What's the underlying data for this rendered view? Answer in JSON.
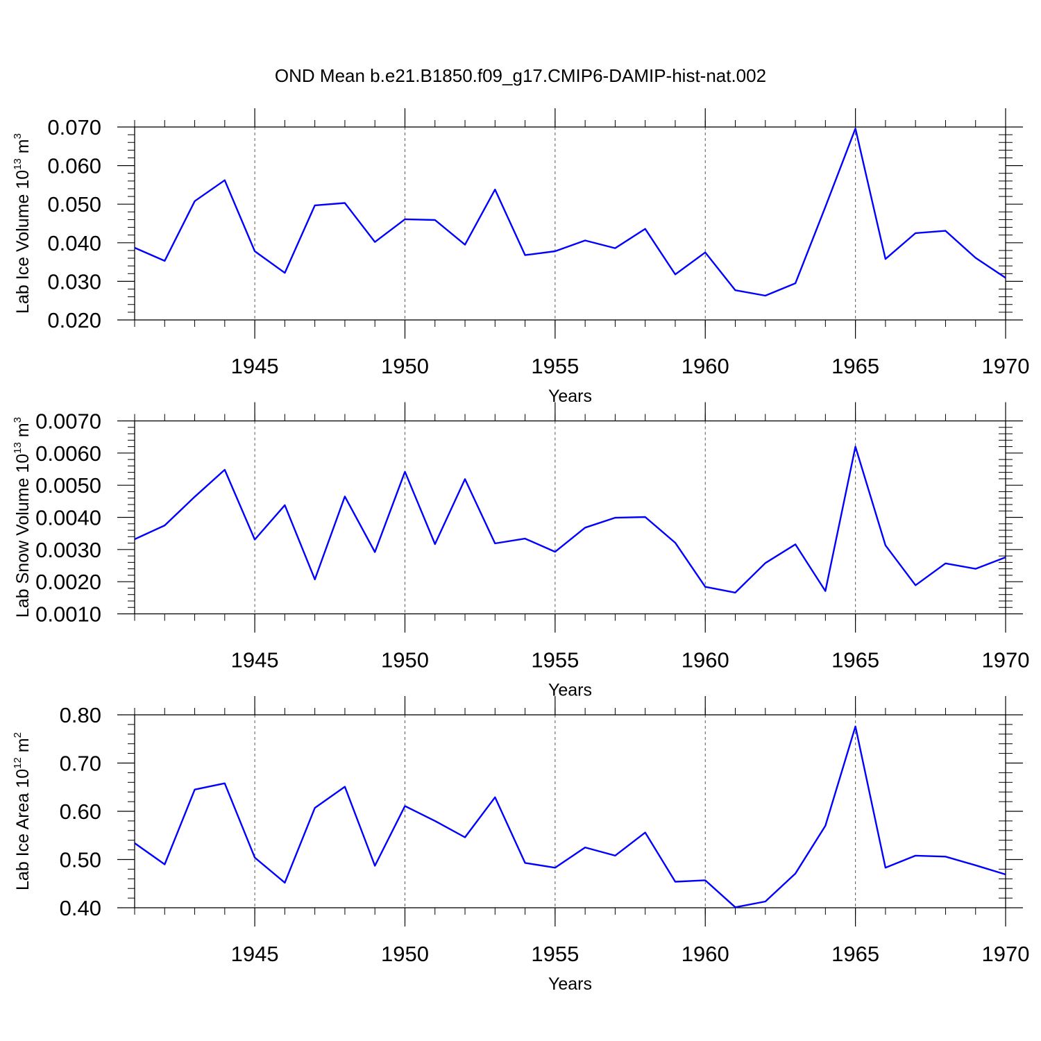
{
  "title": "OND Mean b.e21.B1850.f09_g17.CMIP6-DAMIP-hist-nat.002",
  "line_color": "#0000ff",
  "chart_data": [
    {
      "type": "line",
      "name": "lab-ice-volume",
      "ylabel_text": "Lab Ice Volume 10",
      "ylabel_exp": "13",
      "ylabel_unit": " m",
      "ylabel_unit_exp": "3",
      "xlabel": "Years",
      "xlim": [
        1941,
        1970
      ],
      "ylim": [
        0.02,
        0.07
      ],
      "yticks": [
        0.02,
        0.03,
        0.04,
        0.05,
        0.06,
        0.07
      ],
      "ytick_labels": [
        "0.020",
        "0.030",
        "0.040",
        "0.050",
        "0.060",
        "0.070"
      ],
      "xticks": [
        1945,
        1950,
        1955,
        1960,
        1965,
        1970
      ],
      "xtick_labels": [
        "1945",
        "1950",
        "1955",
        "1960",
        "1965",
        "1970"
      ],
      "x": [
        1941,
        1942,
        1943,
        1944,
        1945,
        1946,
        1947,
        1948,
        1949,
        1950,
        1951,
        1952,
        1953,
        1954,
        1955,
        1956,
        1957,
        1958,
        1959,
        1960,
        1961,
        1962,
        1963,
        1964,
        1965,
        1966,
        1967,
        1968,
        1969,
        1970
      ],
      "values": [
        0.0387,
        0.0353,
        0.0508,
        0.0562,
        0.0378,
        0.0322,
        0.0497,
        0.0503,
        0.0402,
        0.0461,
        0.0459,
        0.0395,
        0.0538,
        0.0368,
        0.0378,
        0.0406,
        0.0386,
        0.0436,
        0.0318,
        0.0375,
        0.0277,
        0.0263,
        0.0295,
        0.0493,
        0.0696,
        0.0358,
        0.0425,
        0.0431,
        0.0361,
        0.0309
      ]
    },
    {
      "type": "line",
      "name": "lab-snow-volume",
      "ylabel_text": "Lab Snow Volume 10",
      "ylabel_exp": "13",
      "ylabel_unit": " m",
      "ylabel_unit_exp": "3",
      "xlabel": "Years",
      "xlim": [
        1941,
        1970
      ],
      "ylim": [
        0.001,
        0.007
      ],
      "yticks": [
        0.001,
        0.002,
        0.003,
        0.004,
        0.005,
        0.006,
        0.007
      ],
      "ytick_labels": [
        "0.0010",
        "0.0020",
        "0.0030",
        "0.0040",
        "0.0050",
        "0.0060",
        "0.0070"
      ],
      "xticks": [
        1945,
        1950,
        1955,
        1960,
        1965,
        1970
      ],
      "xtick_labels": [
        "1945",
        "1950",
        "1955",
        "1960",
        "1965",
        "1970"
      ],
      "x": [
        1941,
        1942,
        1943,
        1944,
        1945,
        1946,
        1947,
        1948,
        1949,
        1950,
        1951,
        1952,
        1953,
        1954,
        1955,
        1956,
        1957,
        1958,
        1959,
        1960,
        1961,
        1962,
        1963,
        1964,
        1965,
        1966,
        1967,
        1968,
        1969,
        1970
      ],
      "values": [
        0.00332,
        0.00375,
        0.00464,
        0.00548,
        0.00331,
        0.00438,
        0.00207,
        0.00465,
        0.00292,
        0.00542,
        0.00317,
        0.00519,
        0.00319,
        0.00334,
        0.00293,
        0.00368,
        0.00399,
        0.00401,
        0.00321,
        0.00184,
        0.00166,
        0.00258,
        0.00316,
        0.00171,
        0.0062,
        0.00313,
        0.00189,
        0.00257,
        0.0024,
        0.00276
      ]
    },
    {
      "type": "line",
      "name": "lab-ice-area",
      "ylabel_text": "Lab Ice Area 10",
      "ylabel_exp": "12",
      "ylabel_unit": " m",
      "ylabel_unit_exp": "2",
      "xlabel": "Years",
      "xlim": [
        1941,
        1970
      ],
      "ylim": [
        0.4,
        0.8
      ],
      "yticks": [
        0.4,
        0.5,
        0.6,
        0.7,
        0.8
      ],
      "ytick_labels": [
        "0.40",
        "0.50",
        "0.60",
        "0.70",
        "0.80"
      ],
      "xticks": [
        1945,
        1950,
        1955,
        1960,
        1965,
        1970
      ],
      "xtick_labels": [
        "1945",
        "1950",
        "1955",
        "1960",
        "1965",
        "1970"
      ],
      "x": [
        1941,
        1942,
        1943,
        1944,
        1945,
        1946,
        1947,
        1948,
        1949,
        1950,
        1951,
        1952,
        1953,
        1954,
        1955,
        1956,
        1957,
        1958,
        1959,
        1960,
        1961,
        1962,
        1963,
        1964,
        1965,
        1966,
        1967,
        1968,
        1969,
        1970
      ],
      "values": [
        0.534,
        0.49,
        0.645,
        0.658,
        0.504,
        0.452,
        0.607,
        0.651,
        0.487,
        0.611,
        0.58,
        0.546,
        0.629,
        0.493,
        0.483,
        0.525,
        0.508,
        0.556,
        0.454,
        0.457,
        0.401,
        0.413,
        0.471,
        0.57,
        0.776,
        0.483,
        0.508,
        0.506,
        0.488,
        0.469
      ]
    }
  ]
}
